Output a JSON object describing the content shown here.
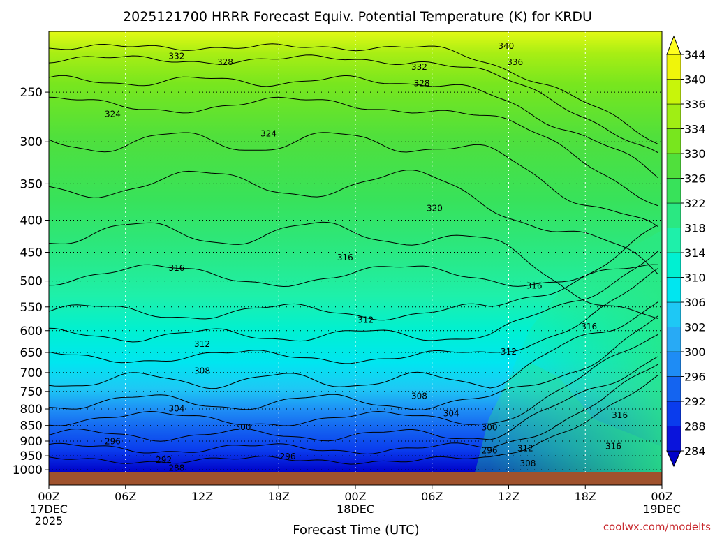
{
  "chart_data": {
    "type": "heatmap",
    "title": "2025121700 HRRR Forecast Equiv. Potential Temperature (K) for KRDU",
    "xlabel": "Forecast Time (UTC)",
    "ylabel": "",
    "credit": "coolwx.com/modelts",
    "variable_units": "K",
    "x_ticks": [
      {
        "hour": 0,
        "label": "00Z",
        "sub": [
          "17DEC",
          "2025"
        ]
      },
      {
        "hour": 6,
        "label": "06Z"
      },
      {
        "hour": 12,
        "label": "12Z"
      },
      {
        "hour": 18,
        "label": "18Z"
      },
      {
        "hour": 24,
        "label": "00Z",
        "sub": [
          "18DEC"
        ]
      },
      {
        "hour": 30,
        "label": "06Z"
      },
      {
        "hour": 36,
        "label": "12Z"
      },
      {
        "hour": 42,
        "label": "18Z"
      },
      {
        "hour": 48,
        "label": "00Z",
        "sub": [
          "19DEC"
        ]
      }
    ],
    "xlim_hours": [
      0,
      48
    ],
    "y_axis": {
      "scale": "log-pressure",
      "units": "hPa",
      "inverted": true,
      "ticks": [
        250,
        300,
        350,
        400,
        450,
        500,
        550,
        600,
        650,
        700,
        750,
        800,
        850,
        900,
        950,
        1000
      ],
      "range": [
        200,
        1010
      ]
    },
    "grid": true,
    "ground_color": "#a0522d",
    "colorbar": {
      "labels": [
        284,
        288,
        292,
        296,
        300,
        302,
        306,
        310,
        314,
        318,
        322,
        326,
        330,
        334,
        336,
        340,
        344
      ],
      "colors": [
        "#0000c8",
        "#0a14dc",
        "#0a3ced",
        "#1464f0",
        "#1e8cf5",
        "#28aaf5",
        "#1ec8f5",
        "#00e6f0",
        "#00f0d2",
        "#1ef0aa",
        "#2ae882",
        "#38e25a",
        "#50e03c",
        "#78e61e",
        "#a0ee14",
        "#c8f50a",
        "#f0f50a",
        "#ffff1e"
      ]
    },
    "contour_labels": [
      {
        "text": "340",
        "hour": 35.8,
        "p": 211
      },
      {
        "text": "332",
        "hour": 10.0,
        "p": 219
      },
      {
        "text": "328",
        "hour": 13.8,
        "p": 224
      },
      {
        "text": "336",
        "hour": 36.5,
        "p": 224
      },
      {
        "text": "332",
        "hour": 29.0,
        "p": 228
      },
      {
        "text": "328",
        "hour": 29.2,
        "p": 242
      },
      {
        "text": "324",
        "hour": 5.0,
        "p": 271
      },
      {
        "text": "324",
        "hour": 17.2,
        "p": 291
      },
      {
        "text": "320",
        "hour": 30.2,
        "p": 383
      },
      {
        "text": "316",
        "hour": 23.2,
        "p": 459
      },
      {
        "text": "316",
        "hour": 10.0,
        "p": 477
      },
      {
        "text": "316",
        "hour": 38.0,
        "p": 509
      },
      {
        "text": "312",
        "hour": 24.8,
        "p": 577
      },
      {
        "text": "316",
        "hour": 42.3,
        "p": 591
      },
      {
        "text": "312",
        "hour": 12.0,
        "p": 630
      },
      {
        "text": "312",
        "hour": 36.0,
        "p": 648
      },
      {
        "text": "308",
        "hour": 12.0,
        "p": 696
      },
      {
        "text": "308",
        "hour": 29.0,
        "p": 763
      },
      {
        "text": "304",
        "hour": 10.0,
        "p": 799
      },
      {
        "text": "304",
        "hour": 31.5,
        "p": 813
      },
      {
        "text": "300",
        "hour": 15.2,
        "p": 855
      },
      {
        "text": "300",
        "hour": 34.5,
        "p": 856
      },
      {
        "text": "316",
        "hour": 44.7,
        "p": 819
      },
      {
        "text": "296",
        "hour": 5.0,
        "p": 901
      },
      {
        "text": "312",
        "hour": 37.3,
        "p": 924
      },
      {
        "text": "316",
        "hour": 44.2,
        "p": 918
      },
      {
        "text": "296",
        "hour": 34.5,
        "p": 932
      },
      {
        "text": "292",
        "hour": 9.0,
        "p": 964
      },
      {
        "text": "296",
        "hour": 18.7,
        "p": 952
      },
      {
        "text": "308",
        "hour": 37.5,
        "p": 977
      },
      {
        "text": "288",
        "hour": 10.0,
        "p": 993
      }
    ]
  }
}
